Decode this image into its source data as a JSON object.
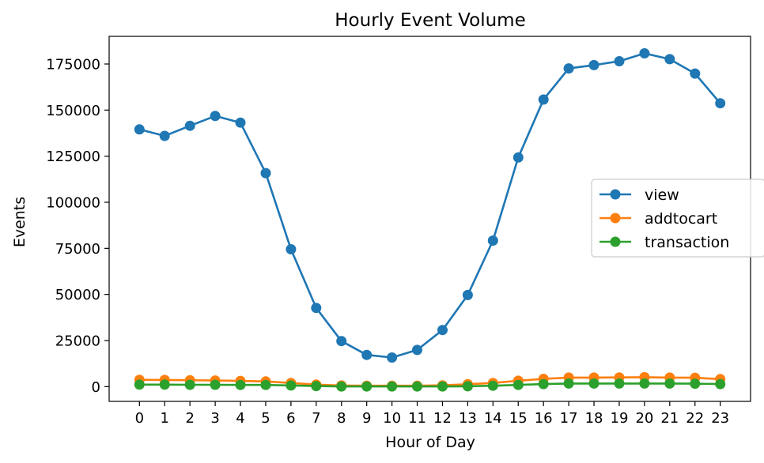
{
  "chart_data": {
    "type": "line",
    "title": "Hourly Event Volume",
    "xlabel": "Hour of Day",
    "ylabel": "Events",
    "x": [
      0,
      1,
      2,
      3,
      4,
      5,
      6,
      7,
      8,
      9,
      10,
      11,
      12,
      13,
      14,
      15,
      16,
      17,
      18,
      19,
      20,
      21,
      22,
      23
    ],
    "xlim": [
      -1.2,
      24.2
    ],
    "ylim": [
      -8000,
      190000
    ],
    "yticks": [
      0,
      25000,
      50000,
      75000,
      100000,
      125000,
      150000,
      175000
    ],
    "grid": false,
    "legend_position": "center-right",
    "marker": "circle",
    "series": [
      {
        "name": "view",
        "color": "#1f77b4",
        "values": [
          139500,
          136000,
          141500,
          146800,
          143200,
          115800,
          74500,
          42700,
          24700,
          17200,
          15800,
          19900,
          30700,
          49700,
          79200,
          124300,
          155700,
          172600,
          174400,
          176500,
          180800,
          177600,
          169800,
          153700
        ]
      },
      {
        "name": "addtocart",
        "color": "#ff7f0e",
        "values": [
          3700,
          3600,
          3500,
          3300,
          3100,
          2800,
          2000,
          1100,
          600,
          500,
          500,
          500,
          700,
          1300,
          2000,
          3200,
          4200,
          4900,
          4900,
          5000,
          5100,
          4900,
          4800,
          4100
        ]
      },
      {
        "name": "transaction",
        "color": "#2ca02c",
        "values": [
          1100,
          1100,
          1000,
          1000,
          900,
          900,
          600,
          300,
          100,
          100,
          100,
          100,
          100,
          200,
          500,
          900,
          1400,
          1700,
          1700,
          1700,
          1700,
          1700,
          1600,
          1400
        ]
      }
    ]
  }
}
